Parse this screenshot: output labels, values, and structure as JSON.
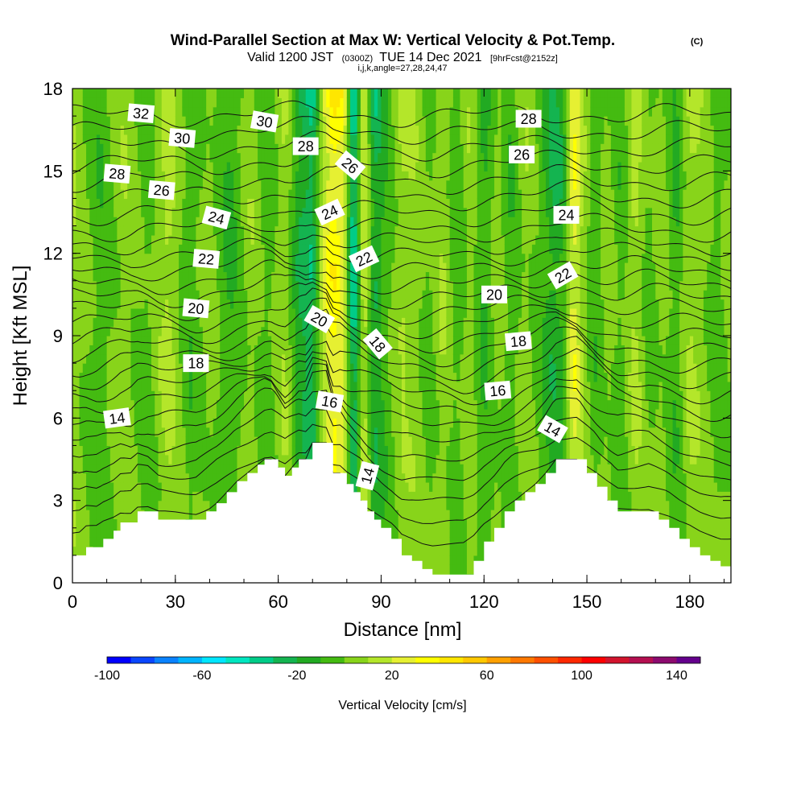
{
  "chart_data": {
    "type": "heatmap",
    "title": "Wind-Parallel Section at Max W: Vertical Velocity & Pot.Temp.",
    "title_mark": "(C)",
    "subtitle_parts": [
      "Valid 1200 JST",
      "(0300Z)",
      "TUE 14 Dec 2021",
      "[9hrFcst@2152z]"
    ],
    "subtitle2": "i,j,k,angle=27,28,24,47",
    "xlabel": "Distance [nm]",
    "ylabel": "Height [Kft MSL]",
    "xlim": [
      0,
      192
    ],
    "ylim": [
      0,
      18
    ],
    "xticks": [
      "0",
      "30",
      "60",
      "90",
      "120",
      "150",
      "180"
    ],
    "yticks": [
      "0",
      "3",
      "6",
      "9",
      "12",
      "15",
      "18"
    ],
    "grid": false,
    "colorbar": {
      "label": "Vertical Velocity [cm/s]",
      "ticks": [
        "-100",
        "-60",
        "-20",
        "20",
        "60",
        "100",
        "140"
      ],
      "levels": [
        -100,
        -90,
        -80,
        -70,
        -60,
        -50,
        -40,
        -30,
        -20,
        -10,
        0,
        10,
        20,
        30,
        40,
        50,
        60,
        70,
        80,
        90,
        100,
        110,
        120,
        130,
        140,
        150
      ],
      "colors": [
        "#0000ff",
        "#0a46ff",
        "#0a82ff",
        "#00b4ff",
        "#00e6ff",
        "#00e6c0",
        "#00cc88",
        "#14b450",
        "#22aa22",
        "#44bb11",
        "#88d41a",
        "#b4e62a",
        "#e6f032",
        "#ffff00",
        "#ffe600",
        "#ffc800",
        "#ffa000",
        "#ff7800",
        "#ff5000",
        "#ff2800",
        "#ff0000",
        "#d2142d",
        "#b40f50",
        "#8c0a6e",
        "#64008c"
      ]
    },
    "terrain": {
      "x_nm": [
        0,
        2,
        4,
        7,
        9,
        12,
        14,
        17,
        19,
        22,
        25,
        27,
        30,
        33,
        36,
        39,
        42,
        45,
        48,
        51,
        54,
        56,
        58,
        60,
        62,
        64,
        66,
        68,
        70,
        72,
        74,
        76,
        78,
        80,
        82,
        84,
        86,
        88,
        90,
        93,
        96,
        99,
        102,
        105,
        108,
        111,
        114,
        117,
        120,
        123,
        126,
        129,
        132,
        135,
        138,
        141,
        144,
        147,
        150,
        153,
        156,
        159,
        162,
        165,
        168,
        171,
        174,
        177,
        180,
        183,
        186,
        189,
        192
      ],
      "height_kft": [
        1.0,
        1.0,
        1.3,
        1.3,
        1.6,
        1.9,
        2.2,
        2.2,
        2.6,
        2.6,
        2.3,
        2.3,
        2.3,
        2.3,
        2.3,
        2.6,
        2.9,
        3.3,
        3.7,
        4.0,
        4.3,
        4.5,
        4.5,
        4.2,
        3.9,
        4.2,
        4.5,
        4.5,
        5.1,
        5.1,
        5.1,
        4.0,
        4.0,
        3.6,
        3.3,
        3.0,
        2.6,
        2.3,
        2.0,
        1.6,
        1.0,
        0.8,
        0.5,
        0.3,
        0.3,
        0.3,
        0.3,
        0.8,
        1.5,
        2.0,
        2.6,
        3.0,
        3.3,
        3.6,
        4.0,
        4.5,
        4.5,
        4.5,
        4.0,
        3.5,
        3.0,
        2.6,
        2.6,
        2.6,
        2.6,
        2.3,
        2.0,
        1.6,
        1.3,
        1.0,
        0.8,
        0.6,
        0.6
      ]
    },
    "w_features": [
      {
        "x_nm": 0,
        "w_cms": 10
      },
      {
        "x_nm": 8,
        "w_cms": -8
      },
      {
        "x_nm": 15,
        "w_cms": 8
      },
      {
        "x_nm": 22,
        "w_cms": -6
      },
      {
        "x_nm": 28,
        "w_cms": 18
      },
      {
        "x_nm": 34,
        "w_cms": -10
      },
      {
        "x_nm": 40,
        "w_cms": 6
      },
      {
        "x_nm": 46,
        "w_cms": -14
      },
      {
        "x_nm": 52,
        "w_cms": 8
      },
      {
        "x_nm": 57,
        "w_cms": -8
      },
      {
        "x_nm": 62,
        "w_cms": 14
      },
      {
        "x_nm": 66,
        "w_cms": -22
      },
      {
        "x_nm": 70,
        "w_cms": -34
      },
      {
        "x_nm": 73,
        "w_cms": 20
      },
      {
        "x_nm": 76,
        "w_cms": 42
      },
      {
        "x_nm": 79,
        "w_cms": 30
      },
      {
        "x_nm": 82,
        "w_cms": -48
      },
      {
        "x_nm": 85,
        "w_cms": 26
      },
      {
        "x_nm": 88,
        "w_cms": -26
      },
      {
        "x_nm": 92,
        "w_cms": -6
      },
      {
        "x_nm": 96,
        "w_cms": 12
      },
      {
        "x_nm": 100,
        "w_cms": 8
      },
      {
        "x_nm": 104,
        "w_cms": -4
      },
      {
        "x_nm": 108,
        "w_cms": 12
      },
      {
        "x_nm": 112,
        "w_cms": -8
      },
      {
        "x_nm": 116,
        "w_cms": 8
      },
      {
        "x_nm": 120,
        "w_cms": -14
      },
      {
        "x_nm": 124,
        "w_cms": 6
      },
      {
        "x_nm": 128,
        "w_cms": -10
      },
      {
        "x_nm": 132,
        "w_cms": 8
      },
      {
        "x_nm": 136,
        "w_cms": -4
      },
      {
        "x_nm": 140,
        "w_cms": -22
      },
      {
        "x_nm": 143,
        "w_cms": -16
      },
      {
        "x_nm": 146,
        "w_cms": 34
      },
      {
        "x_nm": 149,
        "w_cms": 10
      },
      {
        "x_nm": 152,
        "w_cms": -10
      },
      {
        "x_nm": 156,
        "w_cms": 6
      },
      {
        "x_nm": 160,
        "w_cms": -8
      },
      {
        "x_nm": 164,
        "w_cms": 16
      },
      {
        "x_nm": 168,
        "w_cms": -4
      },
      {
        "x_nm": 172,
        "w_cms": 6
      },
      {
        "x_nm": 176,
        "w_cms": -12
      },
      {
        "x_nm": 180,
        "w_cms": 14
      },
      {
        "x_nm": 184,
        "w_cms": 6
      },
      {
        "x_nm": 188,
        "w_cms": -6
      },
      {
        "x_nm": 192,
        "w_cms": 4
      }
    ],
    "isentrope_levels_c": [
      6,
      7,
      8,
      9,
      10,
      11,
      12,
      13,
      14,
      15,
      16,
      17,
      18,
      19,
      20,
      21,
      22,
      23,
      24,
      25,
      26,
      27,
      28,
      29,
      30,
      31,
      32,
      33
    ],
    "isentrope_base_heights_kft": [
      1.3,
      2.1,
      2.9,
      3.6,
      4.3,
      5.0,
      5.6,
      6.2,
      6.8,
      7.3,
      7.8,
      8.3,
      8.8,
      9.3,
      9.8,
      10.3,
      10.8,
      11.3,
      11.8,
      12.3,
      12.8,
      13.4,
      14.0,
      14.6,
      15.2,
      15.8,
      16.4,
      17.0
    ],
    "contour_labels": [
      {
        "text": "32",
        "x_nm": 20,
        "y_kft": 17.1,
        "angle": 5
      },
      {
        "text": "30",
        "x_nm": 32,
        "y_kft": 16.2,
        "angle": 5
      },
      {
        "text": "30",
        "x_nm": 56,
        "y_kft": 16.8,
        "angle": 10
      },
      {
        "text": "28",
        "x_nm": 13,
        "y_kft": 14.9,
        "angle": 5
      },
      {
        "text": "26",
        "x_nm": 26,
        "y_kft": 14.3,
        "angle": 5
      },
      {
        "text": "28",
        "x_nm": 68,
        "y_kft": 15.9,
        "angle": 0
      },
      {
        "text": "26",
        "x_nm": 81,
        "y_kft": 15.2,
        "angle": 40
      },
      {
        "text": "28",
        "x_nm": 133,
        "y_kft": 16.9,
        "angle": 0
      },
      {
        "text": "26",
        "x_nm": 131,
        "y_kft": 15.6,
        "angle": 0
      },
      {
        "text": "24",
        "x_nm": 42,
        "y_kft": 13.3,
        "angle": 15
      },
      {
        "text": "24",
        "x_nm": 75,
        "y_kft": 13.5,
        "angle": -25
      },
      {
        "text": "24",
        "x_nm": 144,
        "y_kft": 13.4,
        "angle": 0
      },
      {
        "text": "22",
        "x_nm": 39,
        "y_kft": 11.8,
        "angle": 5
      },
      {
        "text": "22",
        "x_nm": 85,
        "y_kft": 11.8,
        "angle": -25
      },
      {
        "text": "22",
        "x_nm": 143,
        "y_kft": 11.2,
        "angle": -30
      },
      {
        "text": "20",
        "x_nm": 36,
        "y_kft": 10.0,
        "angle": 5
      },
      {
        "text": "20",
        "x_nm": 72,
        "y_kft": 9.6,
        "angle": 30
      },
      {
        "text": "20",
        "x_nm": 123,
        "y_kft": 10.5,
        "angle": 0
      },
      {
        "text": "18",
        "x_nm": 89,
        "y_kft": 8.7,
        "angle": 50
      },
      {
        "text": "18",
        "x_nm": 130,
        "y_kft": 8.8,
        "angle": -5
      },
      {
        "text": "18",
        "x_nm": 36,
        "y_kft": 8.0,
        "angle": 0
      },
      {
        "text": "16",
        "x_nm": 75,
        "y_kft": 6.6,
        "angle": 10
      },
      {
        "text": "16",
        "x_nm": 124,
        "y_kft": 7.0,
        "angle": -5
      },
      {
        "text": "14",
        "x_nm": 13,
        "y_kft": 6.0,
        "angle": -8
      },
      {
        "text": "14",
        "x_nm": 140,
        "y_kft": 5.6,
        "angle": 30
      },
      {
        "text": "14",
        "x_nm": 86,
        "y_kft": 3.9,
        "angle": -75
      }
    ]
  }
}
